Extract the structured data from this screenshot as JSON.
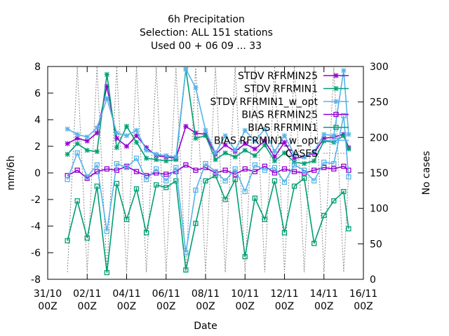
{
  "chart_data": {
    "type": "line",
    "title": [
      "6h Precipitation",
      "Selection: ALL    151 stations",
      "Used  00 + 06 09 ... 33"
    ],
    "xlabel": "Date",
    "ylabel": "mm/6h",
    "y2label": "No cases",
    "xlim": [
      0,
      16
    ],
    "ylim": [
      -8,
      8
    ],
    "y2lim": [
      0,
      300
    ],
    "xticks": [
      {
        "x": 0,
        "label1": "31/10",
        "label2": "00Z"
      },
      {
        "x": 2,
        "label1": "02/11",
        "label2": "00Z"
      },
      {
        "x": 4,
        "label1": "04/11",
        "label2": "00Z"
      },
      {
        "x": 6,
        "label1": "06/11",
        "label2": "00Z"
      },
      {
        "x": 8,
        "label1": "08/11",
        "label2": "00Z"
      },
      {
        "x": 10,
        "label1": "10/11",
        "label2": "00Z"
      },
      {
        "x": 12,
        "label1": "12/11",
        "label2": "00Z"
      },
      {
        "x": 14,
        "label1": "14/11",
        "label2": "00Z"
      },
      {
        "x": 16,
        "label1": "16/11",
        "label2": "00Z"
      }
    ],
    "yticks": [
      -8,
      -6,
      -4,
      -2,
      0,
      2,
      4,
      6,
      8
    ],
    "y2ticks": [
      0,
      50,
      100,
      150,
      200,
      250,
      300
    ],
    "legend_position": "top-right",
    "series": [
      {
        "name": "STDV RFRMIN25",
        "axis": "y",
        "color": "#9400d3",
        "marker": "star",
        "x": [
          1.0,
          1.5,
          2.0,
          2.5,
          3.0,
          3.5,
          4.0,
          4.5,
          5.0,
          5.5,
          6.0,
          6.5,
          7.0,
          7.5,
          8.0,
          8.5,
          9.0,
          9.5,
          10.0,
          10.5,
          11.0,
          11.5,
          12.0,
          12.5,
          13.0,
          13.5,
          14.0,
          14.5,
          15.0,
          15.25
        ],
        "values": [
          2.2,
          2.6,
          2.4,
          3.0,
          6.5,
          2.6,
          2.0,
          2.8,
          1.9,
          1.3,
          1.2,
          1.1,
          3.5,
          3.0,
          2.9,
          1.4,
          2.1,
          1.6,
          2.2,
          1.8,
          2.4,
          1.2,
          2.3,
          1.1,
          1.2,
          1.5,
          2.6,
          2.7,
          2.9,
          1.9
        ]
      },
      {
        "name": "STDV RFRMIN1",
        "axis": "y",
        "color": "#009e73",
        "marker": "star",
        "x": [
          1.0,
          1.5,
          2.0,
          2.5,
          3.0,
          3.5,
          4.0,
          4.5,
          5.0,
          5.5,
          6.0,
          6.5,
          7.0,
          7.5,
          8.0,
          8.5,
          9.0,
          9.5,
          10.0,
          10.5,
          11.0,
          11.5,
          12.0,
          12.5,
          13.0,
          13.5,
          14.0,
          14.5,
          15.0,
          15.25
        ],
        "values": [
          1.4,
          2.2,
          1.7,
          1.6,
          7.4,
          1.9,
          3.5,
          2.3,
          1.1,
          1.0,
          0.9,
          1.0,
          7.8,
          2.6,
          2.8,
          1.0,
          1.5,
          1.2,
          1.7,
          1.3,
          2.1,
          0.9,
          1.5,
          0.8,
          0.7,
          0.9,
          2.4,
          2.3,
          2.8,
          1.8
        ]
      },
      {
        "name": "STDV RFRMIN1_w_opt",
        "axis": "y",
        "color": "#56b4e9",
        "marker": "star",
        "x": [
          1.0,
          1.5,
          2.0,
          2.5,
          3.0,
          3.5,
          4.0,
          4.5,
          5.0,
          5.5,
          6.0,
          6.5,
          7.0,
          7.5,
          8.0,
          8.5,
          9.0,
          9.5,
          10.0,
          10.5,
          11.0,
          11.5,
          12.0,
          12.5,
          13.0,
          13.5,
          14.0,
          14.5,
          15.0,
          15.25
        ],
        "values": [
          3.3,
          2.9,
          2.7,
          3.4,
          5.6,
          3.0,
          2.8,
          3.2,
          1.7,
          1.4,
          1.3,
          1.2,
          7.8,
          6.4,
          3.2,
          1.5,
          2.8,
          1.7,
          3.2,
          2.4,
          3.3,
          1.6,
          2.8,
          1.4,
          1.2,
          1.6,
          2.9,
          2.8,
          7.7,
          2.9
        ]
      },
      {
        "name": "BIAS RFRMIN25",
        "axis": "y",
        "color": "#9400d3",
        "marker": "square",
        "x": [
          1.0,
          1.5,
          2.0,
          2.5,
          3.0,
          3.5,
          4.0,
          4.5,
          5.0,
          5.5,
          6.0,
          6.5,
          7.0,
          7.5,
          8.0,
          8.5,
          9.0,
          9.5,
          10.0,
          10.5,
          11.0,
          11.5,
          12.0,
          12.5,
          13.0,
          13.5,
          14.0,
          14.5,
          15.0,
          15.25
        ],
        "values": [
          -0.2,
          0.2,
          -0.4,
          0.1,
          0.3,
          0.2,
          0.5,
          0.1,
          -0.2,
          0.0,
          -0.1,
          0.1,
          0.6,
          0.2,
          0.4,
          0.0,
          0.2,
          -0.1,
          0.3,
          0.1,
          0.5,
          0.0,
          0.3,
          0.1,
          0.0,
          0.2,
          0.4,
          0.3,
          0.5,
          0.2
        ]
      },
      {
        "name": "BIAS RFRMIN1",
        "axis": "y",
        "color": "#009e73",
        "marker": "square",
        "x": [
          1.0,
          1.5,
          2.0,
          2.5,
          3.0,
          3.5,
          4.0,
          4.5,
          5.0,
          5.5,
          6.0,
          6.5,
          7.0,
          7.5,
          8.0,
          8.5,
          9.0,
          9.5,
          10.0,
          10.5,
          11.0,
          11.5,
          12.0,
          12.5,
          13.0,
          13.5,
          14.0,
          14.5,
          15.0,
          15.25
        ],
        "values": [
          -5.1,
          -2.1,
          -4.9,
          -1.0,
          -7.5,
          -0.8,
          -3.5,
          -1.2,
          -4.5,
          -0.9,
          -1.1,
          -0.6,
          -7.3,
          -3.8,
          -0.6,
          -0.2,
          -2.0,
          -0.5,
          -6.3,
          -1.9,
          -3.5,
          -0.6,
          -4.5,
          -1.0,
          -0.4,
          -5.3,
          -3.2,
          -2.1,
          -1.4,
          -4.2
        ]
      },
      {
        "name": "BIAS RFRMIN1_w_opt",
        "axis": "y",
        "color": "#56b4e9",
        "marker": "square",
        "x": [
          1.0,
          1.5,
          2.0,
          2.5,
          3.0,
          3.5,
          4.0,
          4.5,
          5.0,
          5.5,
          6.0,
          6.5,
          7.0,
          7.5,
          8.0,
          8.5,
          9.0,
          9.5,
          10.0,
          10.5,
          11.0,
          11.5,
          12.0,
          12.5,
          13.0,
          13.5,
          14.0,
          14.5,
          15.0,
          15.25
        ],
        "values": [
          -0.5,
          1.5,
          -0.3,
          0.6,
          -4.4,
          0.7,
          0.4,
          1.1,
          -0.5,
          0.3,
          -0.6,
          0.4,
          -6.0,
          -1.3,
          0.7,
          0.1,
          -0.6,
          0.3,
          -1.4,
          0.6,
          0.2,
          0.4,
          -0.7,
          0.6,
          0.2,
          -0.6,
          0.8,
          0.7,
          4.3,
          -0.3
        ]
      },
      {
        "name": "CASES",
        "axis": "y2",
        "color": "#888888",
        "marker": "none",
        "style": "dotted",
        "x": [
          1.0,
          1.5,
          2.0,
          2.5,
          3.0,
          3.5,
          4.0,
          4.5,
          5.0,
          5.5,
          6.0,
          6.5,
          7.0,
          7.5,
          8.0,
          8.5,
          9.0,
          9.5,
          10.0,
          10.5,
          11.0,
          11.5,
          12.0,
          12.5,
          13.0,
          13.5,
          14.0,
          14.5,
          15.0,
          15.25
        ],
        "values": [
          10,
          300,
          10,
          300,
          10,
          300,
          10,
          300,
          10,
          300,
          10,
          300,
          10,
          300,
          10,
          300,
          10,
          300,
          10,
          300,
          10,
          300,
          10,
          300,
          10,
          300,
          10,
          300,
          10,
          150
        ]
      }
    ]
  }
}
